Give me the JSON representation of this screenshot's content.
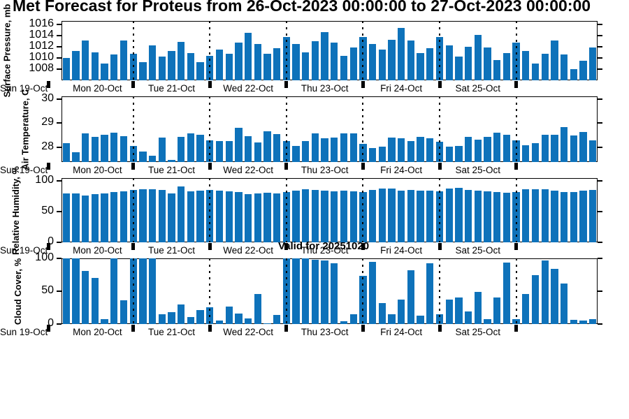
{
  "title": "Met Forecast for Proteus from 26-Oct-2023 00:00:00 to 27-Oct-2023 00:00:00",
  "overlay": {
    "valid_label": "Valid for 20251020"
  },
  "colors": {
    "bar": "#0E72BA",
    "axis": "#000000",
    "background": "#ffffff"
  },
  "x_axis": {
    "left_edge_label": "Sun 19-Oct",
    "day_labels": [
      "Mon 20-Oct",
      "Tue 21-Oct",
      "Wed 22-Oct",
      "Thu 23-Oct",
      "Fri 24-Oct",
      "Sat 25-Oct"
    ],
    "bars_per_day": 8,
    "last_segment_label": ""
  },
  "chart_data": [
    {
      "id": "surface-pressure",
      "type": "bar",
      "ylabel": "Surface Pressure, mb",
      "yticks": [
        1008,
        1010,
        1012,
        1014,
        1016
      ],
      "ylim": [
        1006,
        1016.6
      ],
      "values": [
        1010.0,
        1011.3,
        1013.1,
        1011.0,
        1009.0,
        1010.6,
        1013.1,
        1010.7,
        1009.2,
        1012.3,
        1010.2,
        1011.2,
        1012.9,
        1010.9,
        1009.2,
        1010.4,
        1011.5,
        1010.7,
        1012.7,
        1014.5,
        1012.5,
        1010.8,
        1011.8,
        1013.7,
        1012.5,
        1011.0,
        1013.0,
        1014.6,
        1012.7,
        1010.4,
        1011.9,
        1013.8,
        1012.5,
        1011.5,
        1013.2,
        1015.3,
        1013.1,
        1010.9,
        1011.8,
        1013.7,
        1012.3,
        1010.3,
        1012.0,
        1014.1,
        1011.9,
        1009.6,
        1010.9,
        1012.8,
        1011.3,
        1009.0,
        1010.8,
        1013.1,
        1010.6,
        1008.0,
        1009.5,
        1011.9
      ]
    },
    {
      "id": "air-temperature",
      "type": "bar",
      "ylabel": "Air Temperature, C",
      "yticks": [
        28,
        29,
        30
      ],
      "ylim": [
        27.4,
        30.1
      ],
      "values": [
        28.19,
        27.79,
        28.58,
        28.43,
        28.53,
        28.62,
        28.45,
        28.07,
        27.83,
        27.67,
        28.4,
        27.48,
        28.43,
        28.59,
        28.51,
        28.29,
        28.25,
        28.25,
        28.8,
        28.45,
        28.2,
        28.67,
        28.54,
        28.27,
        28.05,
        28.27,
        28.59,
        28.38,
        28.41,
        28.58,
        28.58,
        28.14,
        27.98,
        28.03,
        28.4,
        28.38,
        28.27,
        28.44,
        28.37,
        28.23,
        28.04,
        28.07,
        28.44,
        28.31,
        28.44,
        28.6,
        28.51,
        28.29,
        28.09,
        28.19,
        28.51,
        28.53,
        28.83,
        28.5,
        28.65,
        28.29
      ]
    },
    {
      "id": "relative-humidity",
      "type": "bar",
      "ylabel": "Relative Humidity, %",
      "yticks": [
        0,
        50,
        100
      ],
      "ylim": [
        0,
        104
      ],
      "values": [
        79,
        79,
        76,
        78,
        79,
        81,
        83,
        85,
        86,
        86,
        85,
        79,
        90,
        83,
        84,
        85,
        84,
        83,
        81,
        78,
        79,
        80,
        79,
        81,
        84,
        86,
        85,
        84,
        83,
        84,
        83,
        82,
        85,
        87,
        87,
        84,
        85,
        84,
        84,
        83,
        87,
        88,
        85,
        84,
        83,
        82,
        80,
        82,
        86,
        86,
        86,
        84,
        82,
        81,
        84,
        85
      ]
    },
    {
      "id": "cloud-cover",
      "type": "bar",
      "ylabel": "Cloud Cover, %",
      "yticks": [
        0,
        50,
        100
      ],
      "ylim": [
        0,
        100
      ],
      "values": [
        100,
        100,
        81,
        70,
        7,
        100,
        36,
        100,
        100,
        100,
        15,
        18,
        30,
        11,
        21,
        26,
        5,
        27,
        16,
        9,
        46,
        1,
        14,
        100,
        100,
        100,
        98,
        97,
        93,
        4,
        15,
        73,
        95,
        32,
        15,
        37,
        82,
        13,
        93,
        15,
        37,
        40,
        19,
        49,
        7,
        41,
        94,
        8,
        46,
        75,
        97,
        84,
        62,
        6,
        5,
        7
      ]
    }
  ]
}
